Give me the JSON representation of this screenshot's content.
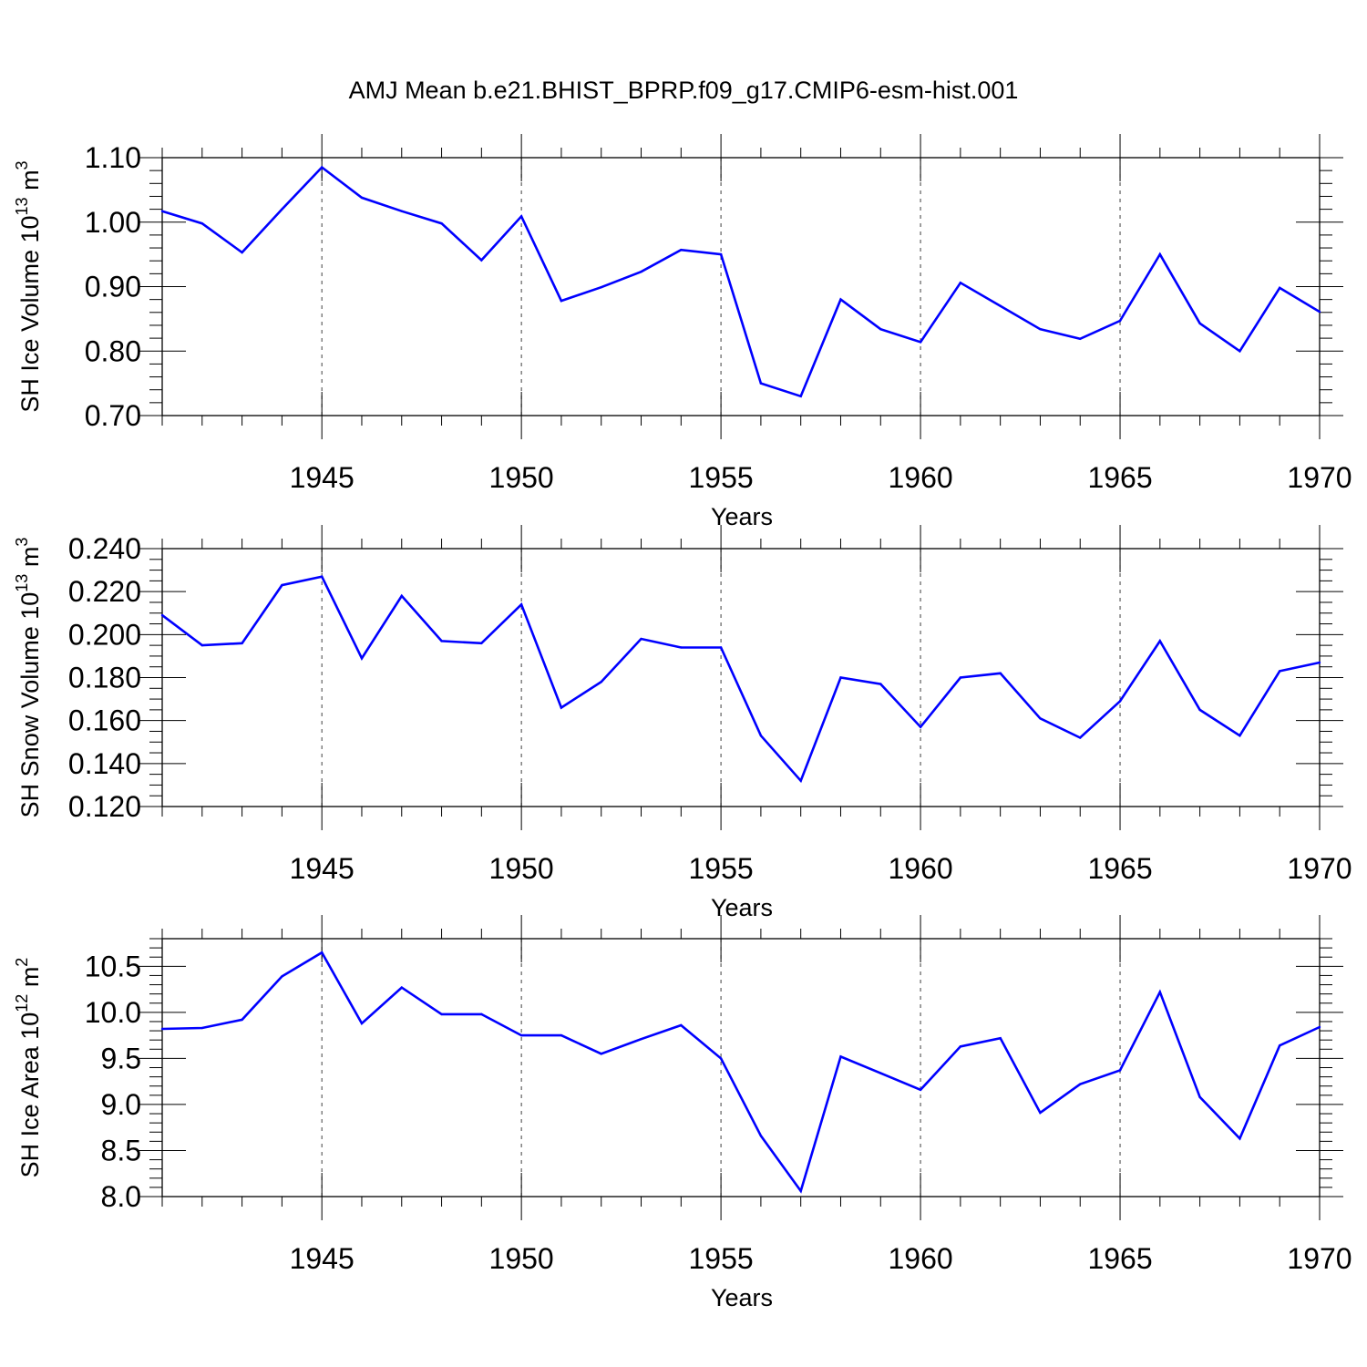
{
  "title": "AMJ Mean b.e21.BHIST_BPRP.f09_g17.CMIP6-esm-hist.001",
  "chart_data": [
    {
      "type": "line",
      "ylabel": "SH Ice Volume 10",
      "ylabel_exp": "13",
      "ylabel_unit": " m",
      "ylabel_unit_exp": "3",
      "xlabel": "Years",
      "xlim": [
        1941,
        1970
      ],
      "ylim": [
        0.7,
        1.1
      ],
      "ytick_values": [
        0.7,
        0.8,
        0.9,
        1.0,
        1.1
      ],
      "ytick_labels": [
        "0.70",
        "0.80",
        "0.90",
        "1.00",
        "1.10"
      ],
      "yminor_step": 0.02,
      "xticks": [
        1945,
        1950,
        1955,
        1960,
        1965,
        1970
      ],
      "xtick_labels": [
        "1945",
        "1950",
        "1955",
        "1960",
        "1965",
        "1970"
      ],
      "grid": "vertical dashed at major x ticks",
      "line_color": "#0000ff",
      "x": [
        1941,
        1942,
        1943,
        1944,
        1945,
        1946,
        1947,
        1948,
        1949,
        1950,
        1951,
        1952,
        1953,
        1954,
        1955,
        1956,
        1957,
        1958,
        1959,
        1960,
        1961,
        1962,
        1963,
        1964,
        1965,
        1966,
        1967,
        1968,
        1969,
        1970
      ],
      "values": [
        1.017,
        0.998,
        0.953,
        1.02,
        1.085,
        1.038,
        1.017,
        0.998,
        0.941,
        1.009,
        0.878,
        0.899,
        0.923,
        0.957,
        0.95,
        0.75,
        0.73,
        0.88,
        0.834,
        0.814,
        0.906,
        0.87,
        0.834,
        0.819,
        0.847,
        0.95,
        0.843,
        0.8,
        0.898,
        0.861
      ]
    },
    {
      "type": "line",
      "ylabel": "SH Snow Volume 10",
      "ylabel_exp": "13",
      "ylabel_unit": " m",
      "ylabel_unit_exp": "3",
      "xlabel": "Years",
      "xlim": [
        1941,
        1970
      ],
      "ylim": [
        0.12,
        0.24
      ],
      "ytick_values": [
        0.12,
        0.14,
        0.16,
        0.18,
        0.2,
        0.22,
        0.24
      ],
      "ytick_labels": [
        "0.120",
        "0.140",
        "0.160",
        "0.180",
        "0.200",
        "0.220",
        "0.240"
      ],
      "yminor_step": 0.005,
      "xticks": [
        1945,
        1950,
        1955,
        1960,
        1965,
        1970
      ],
      "xtick_labels": [
        "1945",
        "1950",
        "1955",
        "1960",
        "1965",
        "1970"
      ],
      "grid": "vertical dashed at major x ticks",
      "line_color": "#0000ff",
      "x": [
        1941,
        1942,
        1943,
        1944,
        1945,
        1946,
        1947,
        1948,
        1949,
        1950,
        1951,
        1952,
        1953,
        1954,
        1955,
        1956,
        1957,
        1958,
        1959,
        1960,
        1961,
        1962,
        1963,
        1964,
        1965,
        1966,
        1967,
        1968,
        1969,
        1970
      ],
      "values": [
        0.209,
        0.195,
        0.196,
        0.223,
        0.227,
        0.189,
        0.218,
        0.197,
        0.196,
        0.214,
        0.166,
        0.178,
        0.198,
        0.194,
        0.194,
        0.153,
        0.132,
        0.18,
        0.177,
        0.157,
        0.18,
        0.182,
        0.161,
        0.152,
        0.169,
        0.197,
        0.165,
        0.153,
        0.183,
        0.187
      ]
    },
    {
      "type": "line",
      "ylabel": "SH Ice Area 10",
      "ylabel_exp": "12",
      "ylabel_unit": " m",
      "ylabel_unit_exp": "2",
      "xlabel": "Years",
      "xlim": [
        1941,
        1970
      ],
      "ylim": [
        8.0,
        10.8
      ],
      "ytick_values": [
        8.0,
        8.5,
        9.0,
        9.5,
        10.0,
        10.5
      ],
      "ytick_labels": [
        "8.0",
        "8.5",
        "9.0",
        "9.5",
        "10.0",
        "10.5"
      ],
      "yminor_step": 0.1,
      "xticks": [
        1945,
        1950,
        1955,
        1960,
        1965,
        1970
      ],
      "xtick_labels": [
        "1945",
        "1950",
        "1955",
        "1960",
        "1965",
        "1970"
      ],
      "grid": "vertical dashed at major x ticks",
      "line_color": "#0000ff",
      "x": [
        1941,
        1942,
        1943,
        1944,
        1945,
        1946,
        1947,
        1948,
        1949,
        1950,
        1951,
        1952,
        1953,
        1954,
        1955,
        1956,
        1957,
        1958,
        1959,
        1960,
        1961,
        1962,
        1963,
        1964,
        1965,
        1966,
        1967,
        1968,
        1969,
        1970
      ],
      "values": [
        9.82,
        9.83,
        9.92,
        10.39,
        10.65,
        9.88,
        10.27,
        9.98,
        9.98,
        9.75,
        9.75,
        9.55,
        9.71,
        9.86,
        9.5,
        8.66,
        8.06,
        9.52,
        9.34,
        9.16,
        9.63,
        9.72,
        8.91,
        9.22,
        9.37,
        10.22,
        9.08,
        8.63,
        9.64,
        9.84
      ]
    }
  ]
}
